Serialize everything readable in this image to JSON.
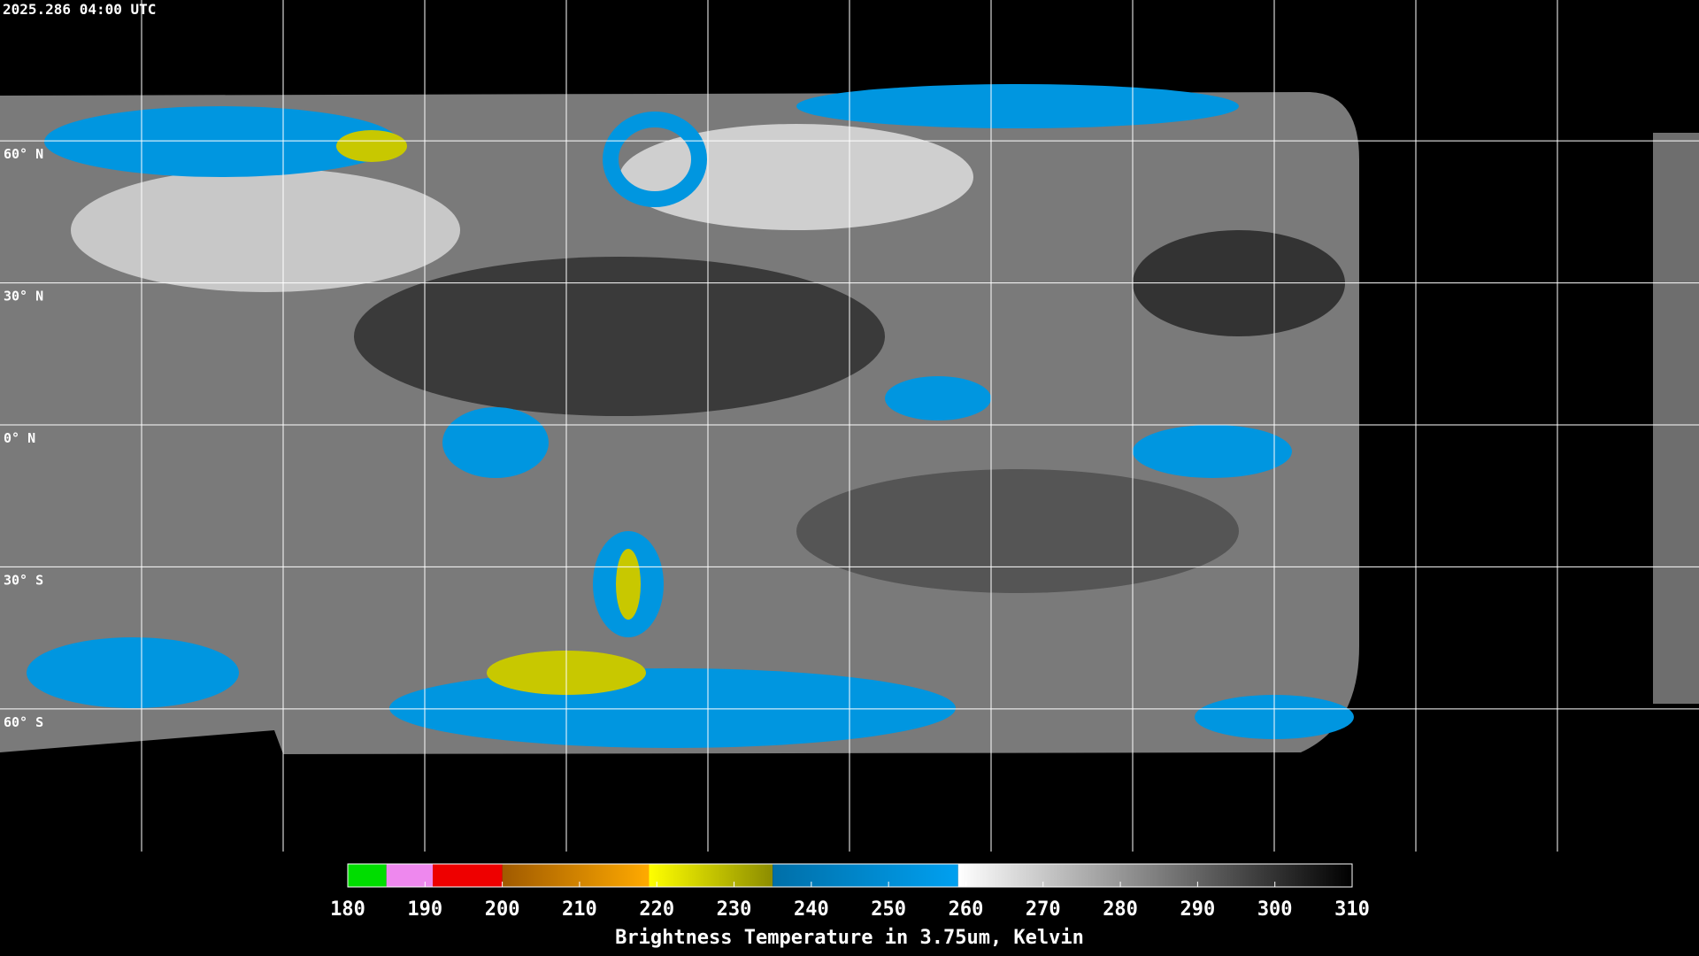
{
  "timestamp": "2025.286 04:00 UTC",
  "latitudes": [
    {
      "value": 60,
      "label": "60° N"
    },
    {
      "value": 30,
      "label": "30° N"
    },
    {
      "value": 0,
      "label": "0° N"
    },
    {
      "value": -30,
      "label": "30° S"
    },
    {
      "value": -60,
      "label": "60° S"
    }
  ],
  "colorbar": {
    "title": "Brightness Temperature in 3.75um, Kelvin",
    "range": [
      180,
      310
    ],
    "ticks": [
      180,
      190,
      200,
      210,
      220,
      230,
      240,
      250,
      260,
      270,
      280,
      290,
      300,
      310
    ],
    "segments": [
      {
        "from": 180,
        "to": 185,
        "colors": [
          "#00dd00",
          "#00dd00"
        ]
      },
      {
        "from": 185,
        "to": 191,
        "colors": [
          "#ee88ee",
          "#ee88ee"
        ]
      },
      {
        "from": 191,
        "to": 200,
        "colors": [
          "#ee0000",
          "#ee0000"
        ]
      },
      {
        "from": 200,
        "to": 219,
        "colors": [
          "#a05a00",
          "#ffaa00"
        ]
      },
      {
        "from": 219,
        "to": 235,
        "colors": [
          "#ffff00",
          "#8c8c00"
        ]
      },
      {
        "from": 235,
        "to": 259,
        "colors": [
          "#006fa8",
          "#00a0f0"
        ]
      },
      {
        "from": 259,
        "to": 310,
        "colors": [
          "#ffffff",
          "#000000"
        ]
      }
    ]
  }
}
